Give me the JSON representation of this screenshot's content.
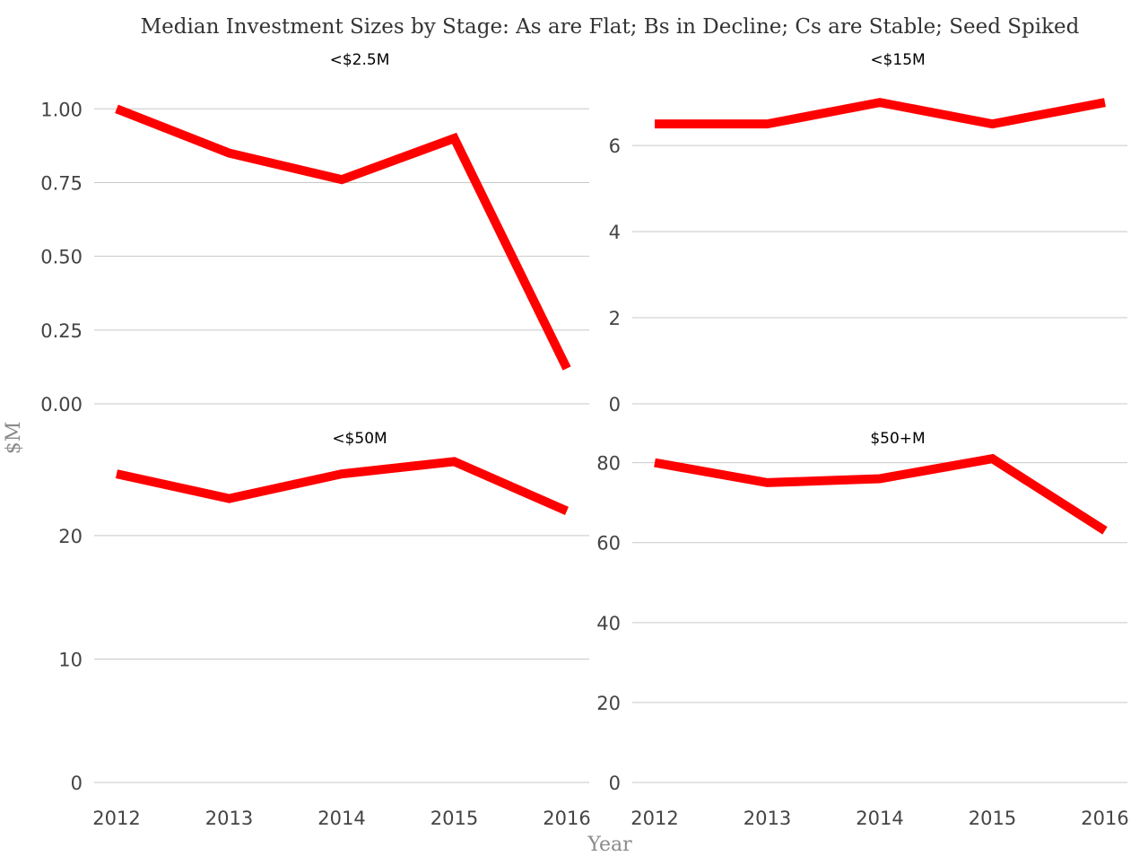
{
  "chart_data": {
    "title": "Median Investment Sizes by Stage: As are Flat; Bs in Decline; Cs are Stable; Seed Spiked",
    "xlabel": "Year",
    "ylabel": "$M",
    "series_color": "#ff0000",
    "grid": true,
    "panels": [
      {
        "type": "line",
        "panel_title": "<$2.5M",
        "x": [
          "2012",
          "2013",
          "2014",
          "2015",
          "2016"
        ],
        "values": [
          1.0,
          0.85,
          0.76,
          0.9,
          0.12
        ],
        "ylim": [
          0,
          1.08
        ],
        "yticks": [
          0,
          0.25,
          0.5,
          0.75,
          1.0
        ],
        "ytick_labels": [
          "0.00",
          "0.25",
          "0.50",
          "0.75",
          "1.00"
        ],
        "show_xticks": false
      },
      {
        "type": "line",
        "panel_title": "<$15M",
        "x": [
          "2012",
          "2013",
          "2014",
          "2015",
          "2016"
        ],
        "values": [
          6.5,
          6.5,
          7.0,
          6.5,
          7.0
        ],
        "ylim": [
          0,
          7.4
        ],
        "yticks": [
          0,
          2,
          4,
          6
        ],
        "ytick_labels": [
          "0",
          "2",
          "4",
          "6"
        ],
        "show_xticks": false
      },
      {
        "type": "line",
        "panel_title": "<$50M",
        "x": [
          "2012",
          "2013",
          "2014",
          "2015",
          "2016"
        ],
        "values": [
          25,
          23,
          25,
          26,
          22
        ],
        "ylim": [
          0,
          28.5
        ],
        "yticks": [
          0,
          10,
          20
        ],
        "ytick_labels": [
          "0",
          "10",
          "20"
        ],
        "show_xticks": true
      },
      {
        "type": "line",
        "panel_title": "$50+M",
        "x": [
          "2012",
          "2013",
          "2014",
          "2015",
          "2016"
        ],
        "values": [
          80,
          75,
          76,
          81,
          63
        ],
        "ylim": [
          0,
          88
        ],
        "yticks": [
          0,
          20,
          40,
          60,
          80
        ],
        "ytick_labels": [
          "0",
          "20",
          "40",
          "60",
          "80"
        ],
        "show_xticks": true
      }
    ]
  }
}
